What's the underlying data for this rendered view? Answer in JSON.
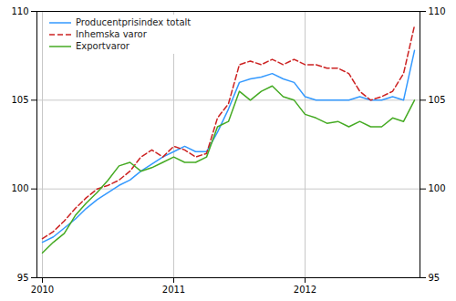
{
  "chart_data": {
    "type": "line",
    "categories": [
      "2010",
      null,
      null,
      null,
      null,
      null,
      null,
      null,
      null,
      null,
      null,
      null,
      "2011",
      null,
      null,
      null,
      null,
      null,
      null,
      null,
      null,
      null,
      null,
      null,
      "2012",
      null,
      null,
      null,
      null,
      null,
      null,
      null,
      null,
      null,
      null
    ],
    "ylim": [
      95,
      110
    ],
    "yticks": [
      95,
      100,
      105,
      110
    ],
    "grid": true,
    "legend": "upper left",
    "series": [
      {
        "name": "Producentprisindex totalt",
        "color": "#3399ff",
        "line_style": "solid",
        "values": [
          97.0,
          97.3,
          97.8,
          98.3,
          98.9,
          99.4,
          99.8,
          100.2,
          100.5,
          101.0,
          101.4,
          101.8,
          102.1,
          102.4,
          102.1,
          102.1,
          103.2,
          104.5,
          106.0,
          106.2,
          106.3,
          106.5,
          106.2,
          106.0,
          105.2,
          105.0,
          105.0,
          105.0,
          105.0,
          105.2,
          105.0,
          105.0,
          105.2,
          105.0,
          107.8
        ]
      },
      {
        "name": "Inhemska varor",
        "color": "#cc2222",
        "line_style": "dashed",
        "values": [
          97.2,
          97.6,
          98.2,
          98.9,
          99.5,
          100.0,
          100.2,
          100.5,
          101.0,
          101.8,
          102.2,
          101.8,
          102.4,
          102.2,
          101.8,
          102.0,
          104.0,
          104.8,
          107.0,
          107.2,
          107.0,
          107.3,
          107.0,
          107.3,
          107.0,
          107.0,
          106.8,
          106.8,
          106.5,
          105.5,
          105.0,
          105.2,
          105.5,
          106.5,
          109.2
        ]
      },
      {
        "name": "Exportvaror",
        "color": "#44aa22",
        "line_style": "solid",
        "values": [
          96.4,
          97.0,
          97.5,
          98.5,
          99.2,
          99.8,
          100.5,
          101.3,
          101.5,
          101.0,
          101.2,
          101.5,
          101.8,
          101.5,
          101.5,
          101.8,
          103.5,
          103.8,
          105.5,
          105.0,
          105.5,
          105.8,
          105.2,
          105.0,
          104.2,
          104.0,
          103.7,
          103.8,
          103.5,
          103.8,
          103.5,
          103.5,
          104.0,
          103.8,
          105.0
        ]
      }
    ]
  }
}
